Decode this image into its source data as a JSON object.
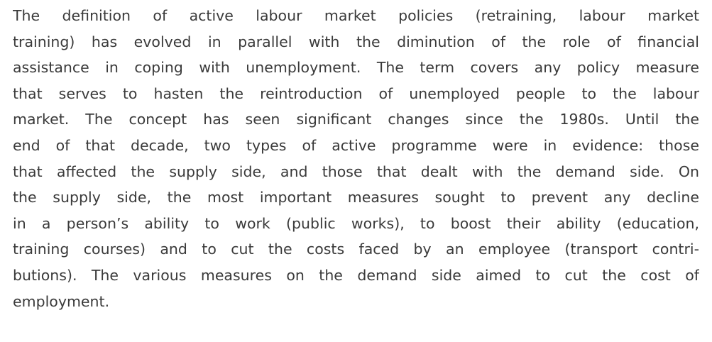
{
  "paragraph": {
    "lines": [
      "The definition of active labour market policies (retraining, labour market",
      "training) has evolved in parallel with the diminution of the role of financial",
      "assistance in coping with unemployment. The term covers any policy measure",
      "that serves to hasten the reintroduction of unemployed people to the labour",
      "market. The concept has seen significant changes since the 1980s. Until the",
      "end of that decade, two types of active programme were in evidence: those",
      "that affected the supply side, and those that dealt with the demand side. On",
      "the supply side, the most important measures sought to prevent any decline",
      "in a person’s ability to work (public works), to boost their ability (education,",
      "training courses) and to cut the costs faced by an employee (transport contri-",
      "butions). The various measures on the demand side aimed to cut the cost of",
      "employment."
    ]
  }
}
